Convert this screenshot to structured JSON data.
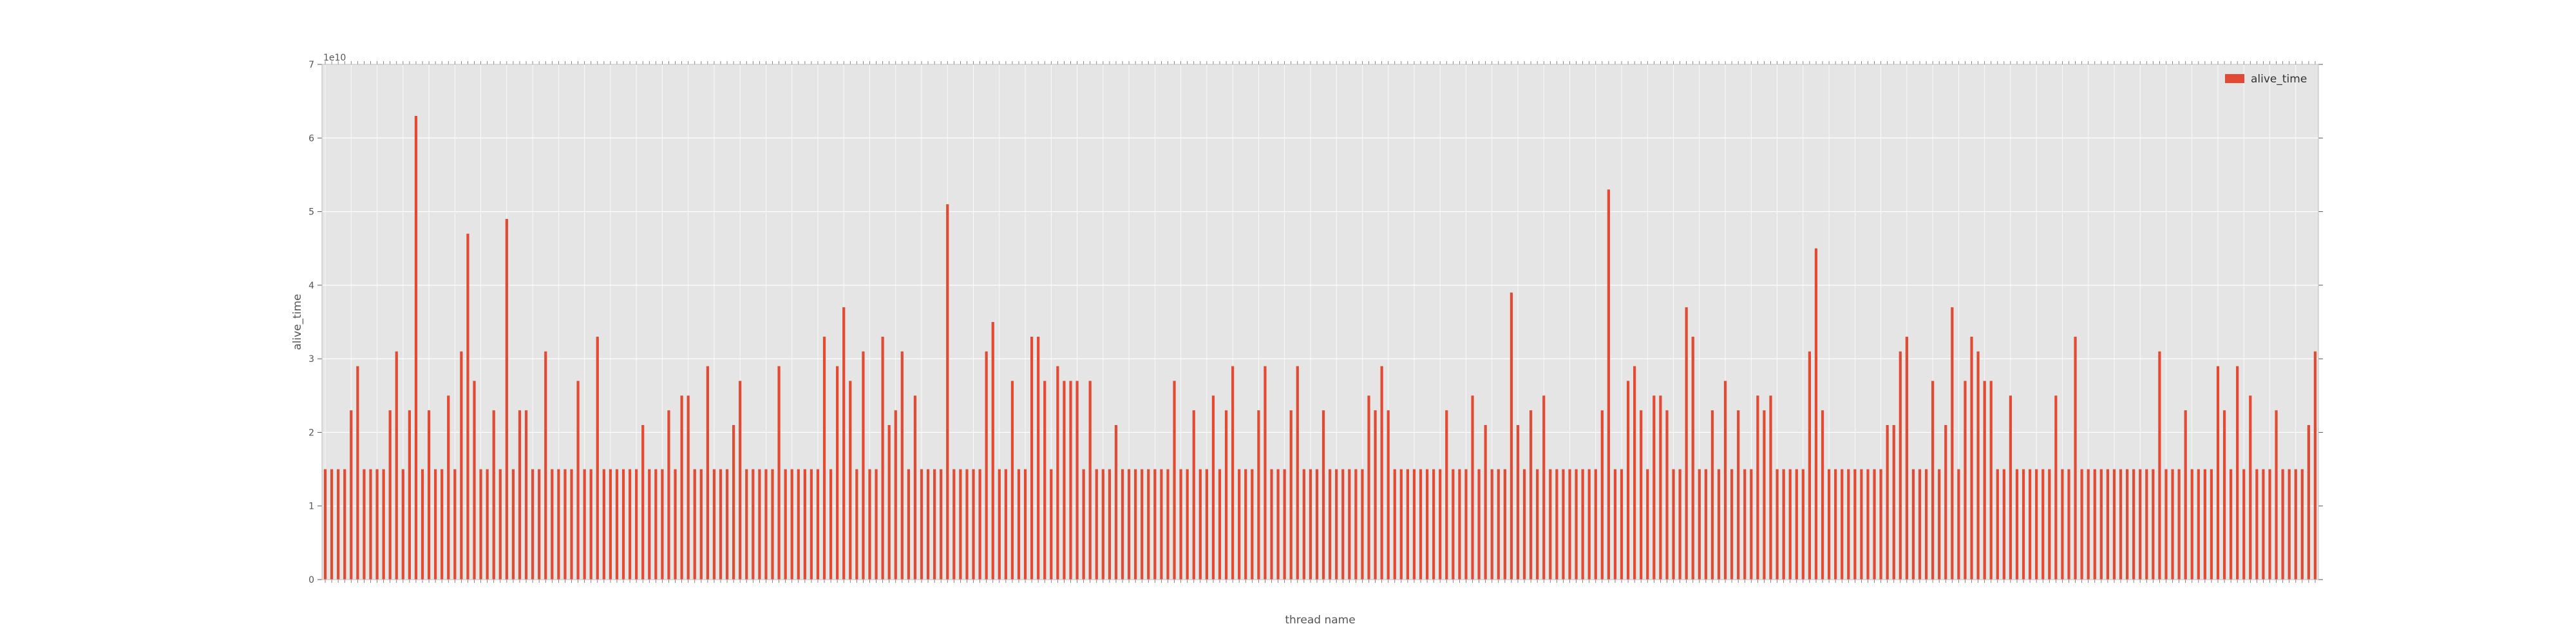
{
  "chart_data": {
    "type": "bar",
    "xlabel": "thread name",
    "ylabel": "alive_time",
    "ylim": [
      0,
      70000000000
    ],
    "y_offset_text": "1e10",
    "y_ticks": [
      0,
      1,
      2,
      3,
      4,
      5,
      6,
      7
    ],
    "y_tick_labels": [
      "0",
      "1",
      "2",
      "3",
      "4",
      "5",
      "6",
      "7"
    ],
    "grid": true,
    "legend_position": "top-right",
    "colors": {
      "bar": "#e24a33",
      "plot_bg": "#e5e5e5",
      "grid": "#ffffff"
    },
    "series": [
      {
        "name": "alive_time",
        "values_1e10": [
          1.5,
          1.5,
          1.5,
          1.5,
          2.3,
          2.9,
          1.5,
          1.5,
          1.5,
          1.5,
          2.3,
          3.1,
          1.5,
          2.3,
          6.3,
          1.5,
          2.3,
          1.5,
          1.5,
          2.5,
          1.5,
          3.1,
          4.7,
          2.7,
          1.5,
          1.5,
          2.3,
          1.5,
          4.9,
          1.5,
          2.3,
          2.3,
          1.5,
          1.5,
          3.1,
          1.5,
          1.5,
          1.5,
          1.5,
          2.7,
          1.5,
          1.5,
          3.3,
          1.5,
          1.5,
          1.5,
          1.5,
          1.5,
          1.5,
          2.1,
          1.5,
          1.5,
          1.5,
          2.3,
          1.5,
          2.5,
          2.5,
          1.5,
          1.5,
          2.9,
          1.5,
          1.5,
          1.5,
          2.1,
          2.7,
          1.5,
          1.5,
          1.5,
          1.5,
          1.5,
          2.9,
          1.5,
          1.5,
          1.5,
          1.5,
          1.5,
          1.5,
          3.3,
          1.5,
          2.9,
          3.7,
          2.7,
          1.5,
          3.1,
          1.5,
          1.5,
          3.3,
          2.1,
          2.3,
          3.1,
          1.5,
          2.5,
          1.5,
          1.5,
          1.5,
          1.5,
          5.1,
          1.5,
          1.5,
          1.5,
          1.5,
          1.5,
          3.1,
          3.5,
          1.5,
          1.5,
          2.7,
          1.5,
          1.5,
          3.3,
          3.3,
          2.7,
          1.5,
          2.9,
          2.7,
          2.7,
          2.7,
          1.5,
          2.7,
          1.5,
          1.5,
          1.5,
          2.1,
          1.5,
          1.5,
          1.5,
          1.5,
          1.5,
          1.5,
          1.5,
          1.5,
          2.7,
          1.5,
          1.5,
          2.3,
          1.5,
          1.5,
          2.5,
          1.5,
          2.3,
          2.9,
          1.5,
          1.5,
          1.5,
          2.3,
          2.9,
          1.5,
          1.5,
          1.5,
          2.3,
          2.9,
          1.5,
          1.5,
          1.5,
          2.3,
          1.5,
          1.5,
          1.5,
          1.5,
          1.5,
          1.5,
          2.5,
          2.3,
          2.9,
          2.3,
          1.5,
          1.5,
          1.5,
          1.5,
          1.5,
          1.5,
          1.5,
          1.5,
          2.3,
          1.5,
          1.5,
          1.5,
          2.5,
          1.5,
          2.1,
          1.5,
          1.5,
          1.5,
          3.9,
          2.1,
          1.5,
          2.3,
          1.5,
          2.5,
          1.5,
          1.5,
          1.5,
          1.5,
          1.5,
          1.5,
          1.5,
          1.5,
          2.3,
          5.3,
          1.5,
          1.5,
          2.7,
          2.9,
          2.3,
          1.5,
          2.5,
          2.5,
          2.3,
          1.5,
          1.5,
          3.7,
          3.3,
          1.5,
          1.5,
          2.3,
          1.5,
          2.7,
          1.5,
          2.3,
          1.5,
          1.5,
          2.5,
          2.3,
          2.5,
          1.5,
          1.5,
          1.5,
          1.5,
          1.5,
          3.1,
          4.5,
          2.3,
          1.5,
          1.5,
          1.5,
          1.5,
          1.5,
          1.5,
          1.5,
          1.5,
          1.5,
          2.1,
          2.1,
          3.1,
          3.3,
          1.5,
          1.5,
          1.5,
          2.7,
          1.5,
          2.1,
          3.7,
          1.5,
          2.7,
          3.3,
          3.1,
          2.7,
          2.7,
          1.5,
          1.5,
          2.5,
          1.5,
          1.5,
          1.5,
          1.5,
          1.5,
          1.5,
          2.5,
          1.5,
          1.5,
          3.3,
          1.5,
          1.5,
          1.5,
          1.5,
          1.5,
          1.5,
          1.5,
          1.5,
          1.5,
          1.5,
          1.5,
          1.5,
          3.1,
          1.5,
          1.5,
          1.5,
          2.3,
          1.5,
          1.5,
          1.5,
          1.5,
          2.9,
          2.3,
          1.5,
          2.9,
          1.5,
          2.5,
          1.5,
          1.5,
          1.5,
          2.3,
          1.5,
          1.5,
          1.5,
          1.5,
          2.1,
          3.1
        ]
      }
    ]
  }
}
